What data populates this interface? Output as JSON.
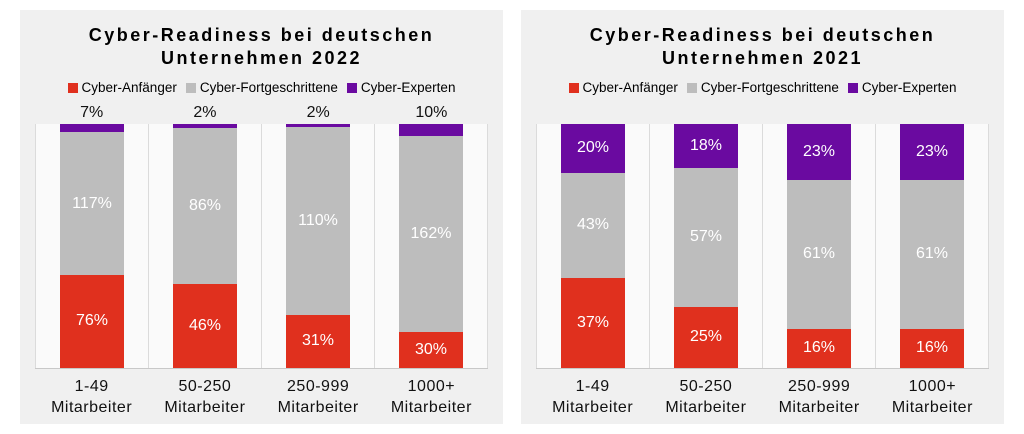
{
  "colors": {
    "page_background": "#ffffff",
    "panel_background": "#f0f0f0",
    "plot_background": "#fafafa",
    "gridline": "#dbdbdb",
    "axis_line": "#c8c8c8",
    "anfaenger_red": "#e0301e",
    "fortgeschrittene_gray": "#bdbdbd",
    "experten_purple": "#6a0aa0",
    "bar_label_white": "#ffffff",
    "text_black": "#000000"
  },
  "chart_data": [
    {
      "type": "bar",
      "stacked": true,
      "normalize": "segments scaled to value/sum of bar; every bar drawn full plot height",
      "title_lines": [
        "Cyber-Readiness bei deutschen",
        "Unternehmen 2022"
      ],
      "legend_position": "top",
      "grid": "vertical category separators only",
      "categories": [
        {
          "line1": "1-49",
          "line2": "Mitarbeiter"
        },
        {
          "line1": "50-250",
          "line2": "Mitarbeiter"
        },
        {
          "line1": "250-999",
          "line2": "Mitarbeiter"
        },
        {
          "line1": "1000+",
          "line2": "Mitarbeiter"
        }
      ],
      "series": [
        {
          "name": "Cyber-Anfänger",
          "color": "#e0301e",
          "values": [
            76,
            46,
            31,
            30
          ],
          "labels": [
            "76%",
            "46%",
            "31%",
            "30%"
          ],
          "label_position": "inside"
        },
        {
          "name": "Cyber-Fortgeschrittene",
          "color": "#bdbdbd",
          "values": [
            117,
            86,
            110,
            162
          ],
          "labels": [
            "117%",
            "86%",
            "110%",
            "162%"
          ],
          "label_position": "inside"
        },
        {
          "name": "Cyber-Experten",
          "color": "#6a0aa0",
          "values": [
            7,
            2,
            2,
            10
          ],
          "labels": [
            "7%",
            "2%",
            "2%",
            "10%"
          ],
          "label_position": "above"
        }
      ]
    },
    {
      "type": "bar",
      "stacked": true,
      "normalize": "segments scaled to value/sum of bar; every bar drawn full plot height",
      "title_lines": [
        "Cyber-Readiness bei deutschen",
        "Unternehmen 2021"
      ],
      "legend_position": "top",
      "grid": "vertical category separators only",
      "categories": [
        {
          "line1": "1-49",
          "line2": "Mitarbeiter"
        },
        {
          "line1": "50-250",
          "line2": "Mitarbeiter"
        },
        {
          "line1": "250-999",
          "line2": "Mitarbeiter"
        },
        {
          "line1": "1000+",
          "line2": "Mitarbeiter"
        }
      ],
      "series": [
        {
          "name": "Cyber-Anfänger",
          "color": "#e0301e",
          "values": [
            37,
            25,
            16,
            16
          ],
          "labels": [
            "37%",
            "25%",
            "16%",
            "16%"
          ],
          "label_position": "inside"
        },
        {
          "name": "Cyber-Fortgeschrittene",
          "color": "#bdbdbd",
          "values": [
            43,
            57,
            61,
            61
          ],
          "labels": [
            "43%",
            "57%",
            "61%",
            "61%"
          ],
          "label_position": "inside"
        },
        {
          "name": "Cyber-Experten",
          "color": "#6a0aa0",
          "values": [
            20,
            18,
            23,
            23
          ],
          "labels": [
            "20%",
            "18%",
            "23%",
            "23%"
          ],
          "label_position": "inside"
        }
      ]
    }
  ]
}
